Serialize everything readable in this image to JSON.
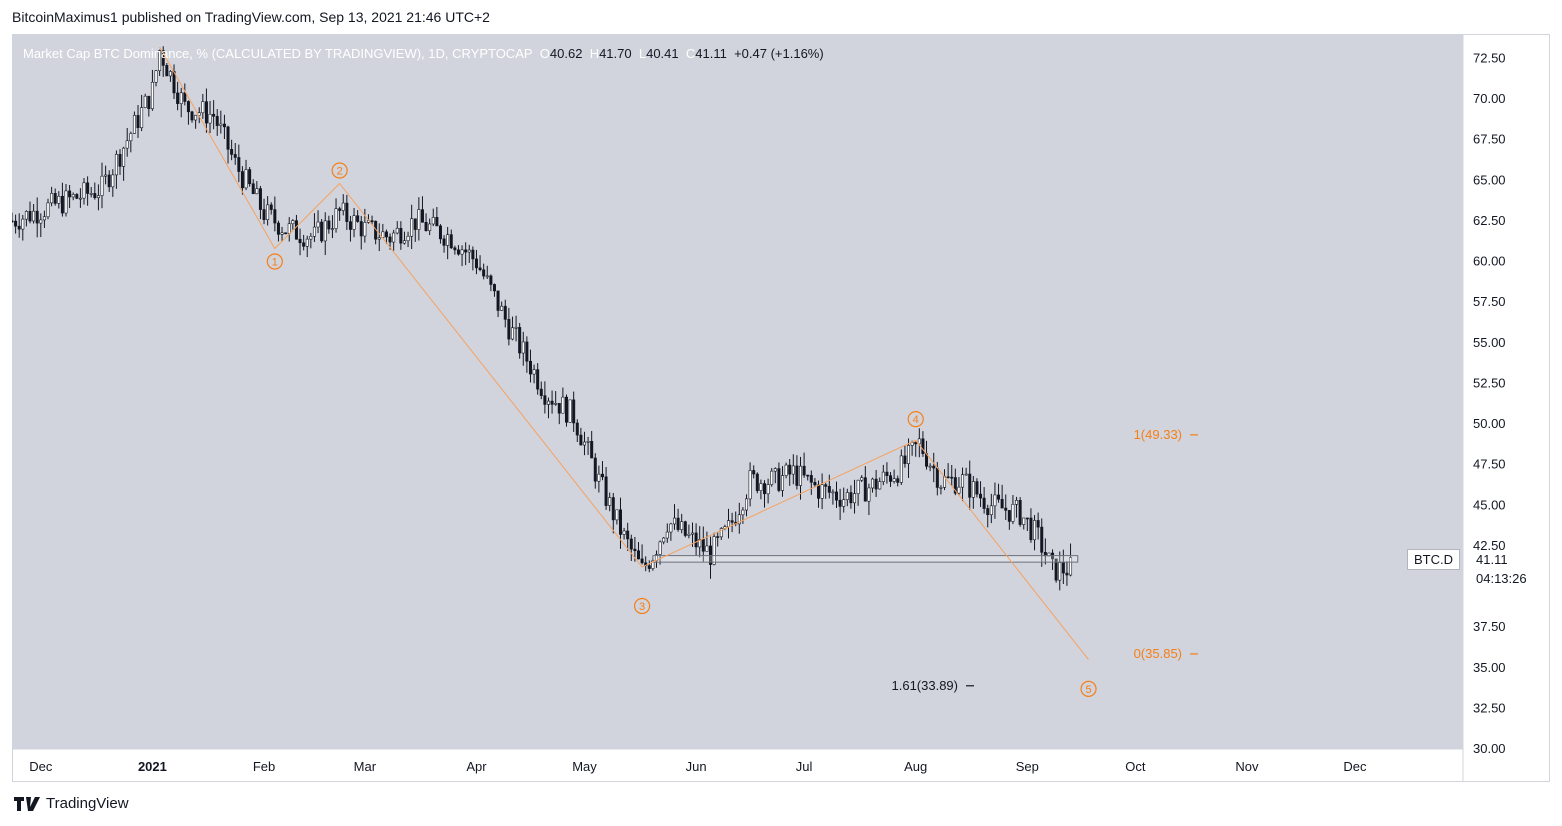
{
  "header": {
    "published_by": "BitcoinMaximus1 published on TradingView.com, Sep 13, 2021 21:46 UTC+2"
  },
  "legend": {
    "title": "Market Cap BTC Dominance, % (CALCULATED BY TRADINGVIEW), 1D, CRYPTOCAP",
    "o_label": "O",
    "o_value": "40.62",
    "h_label": "H",
    "h_value": "41.70",
    "l_label": "L",
    "l_value": "40.41",
    "c_label": "C",
    "c_value": "41.11",
    "change": "+0.47 (+1.16%)"
  },
  "price_axis": {
    "symbol_label": "BTC.D",
    "last_price": "41.11",
    "countdown": "04:13:26"
  },
  "footer": {
    "brand": "TradingView",
    "logo_icon": "tradingview-logo-icon"
  },
  "colors": {
    "plot_bg": "#d1d4dc",
    "candle": "#131722",
    "wave": "#f5a262",
    "label_orange": "#f57f17",
    "black_text": "#131722"
  },
  "chart_data": {
    "type": "candlestick",
    "title": "Market Cap BTC Dominance, % (CALCULATED BY TRADINGVIEW), 1D, CRYPTOCAP",
    "ylim": [
      30,
      74
    ],
    "y_ticks": [
      "72.50",
      "70.00",
      "67.50",
      "65.00",
      "62.50",
      "60.00",
      "57.50",
      "55.00",
      "52.50",
      "50.00",
      "47.50",
      "45.00",
      "42.50",
      "37.50",
      "35.00",
      "32.50",
      "30.00"
    ],
    "x_ticks": [
      {
        "label": "Dec",
        "date": "2020-12-01"
      },
      {
        "label": "2021",
        "date": "2021-01-01"
      },
      {
        "label": "Feb",
        "date": "2021-02-01"
      },
      {
        "label": "Mar",
        "date": "2021-03-01"
      },
      {
        "label": "Apr",
        "date": "2021-04-01"
      },
      {
        "label": "May",
        "date": "2021-05-01"
      },
      {
        "label": "Jun",
        "date": "2021-06-01"
      },
      {
        "label": "Jul",
        "date": "2021-07-01"
      },
      {
        "label": "Aug",
        "date": "2021-08-01"
      },
      {
        "label": "Sep",
        "date": "2021-09-01"
      },
      {
        "label": "Oct",
        "date": "2021-10-01"
      },
      {
        "label": "Nov",
        "date": "2021-11-01"
      },
      {
        "label": "Dec",
        "date": "2021-12-01"
      }
    ],
    "x_range": [
      "2020-11-23",
      "2021-12-31"
    ],
    "price_anchors": [
      [
        "2020-11-23",
        62.5
      ],
      [
        "2020-12-05",
        63.5
      ],
      [
        "2020-12-18",
        64.5
      ],
      [
        "2020-12-25",
        67.5
      ],
      [
        "2021-01-01",
        70.5
      ],
      [
        "2021-01-03",
        73
      ],
      [
        "2021-01-10",
        69.5
      ],
      [
        "2021-01-18",
        69
      ],
      [
        "2021-01-24",
        66
      ],
      [
        "2021-02-01",
        63
      ],
      [
        "2021-02-07",
        62
      ],
      [
        "2021-02-15",
        61.5
      ],
      [
        "2021-02-22",
        63
      ],
      [
        "2021-03-01",
        62
      ],
      [
        "2021-03-08",
        61.5
      ],
      [
        "2021-03-15",
        62.5
      ],
      [
        "2021-03-25",
        61.5
      ],
      [
        "2021-04-01",
        60
      ],
      [
        "2021-04-10",
        56
      ],
      [
        "2021-04-20",
        52
      ],
      [
        "2021-04-28",
        50.5
      ],
      [
        "2021-05-05",
        46.5
      ],
      [
        "2021-05-12",
        43
      ],
      [
        "2021-05-17",
        41
      ],
      [
        "2021-05-20",
        42
      ],
      [
        "2021-05-24",
        44
      ],
      [
        "2021-05-30",
        43
      ],
      [
        "2021-06-05",
        42
      ],
      [
        "2021-06-10",
        43.5
      ],
      [
        "2021-06-16",
        46.5
      ],
      [
        "2021-06-23",
        46.5
      ],
      [
        "2021-06-28",
        47
      ],
      [
        "2021-07-05",
        46
      ],
      [
        "2021-07-12",
        45.5
      ],
      [
        "2021-07-20",
        46.2
      ],
      [
        "2021-07-28",
        47.3
      ],
      [
        "2021-08-02",
        48.8
      ],
      [
        "2021-08-08",
        46.5
      ],
      [
        "2021-08-14",
        46.5
      ],
      [
        "2021-08-22",
        45
      ],
      [
        "2021-08-30",
        44.5
      ],
      [
        "2021-09-04",
        43
      ],
      [
        "2021-09-08",
        41
      ],
      [
        "2021-09-13",
        41.11
      ]
    ],
    "wave_lines": [
      [
        "2021-01-03",
        73.2
      ],
      [
        "2021-02-04",
        60.8
      ],
      [
        "2021-02-22",
        64.8
      ],
      [
        "2021-05-17",
        41.2
      ],
      [
        "2021-08-01",
        49.0
      ],
      [
        "2021-09-18",
        35.5
      ]
    ],
    "wave_labels": [
      {
        "label": "1",
        "date": "2021-02-04",
        "value": 60.0
      },
      {
        "label": "2",
        "date": "2021-02-22",
        "value": 65.6
      },
      {
        "label": "3",
        "date": "2021-05-17",
        "value": 38.8
      },
      {
        "label": "4",
        "date": "2021-08-01",
        "value": 50.3
      },
      {
        "label": "5",
        "date": "2021-09-18",
        "value": 33.7
      }
    ],
    "support_zone": {
      "from": "2021-05-20",
      "to": "2021-09-15",
      "y_low": 41.5,
      "y_high": 41.9
    },
    "fib_levels": [
      {
        "text": "1(49.33)",
        "value": 49.33,
        "color": "orange"
      },
      {
        "text": "0(35.85)",
        "value": 35.85,
        "color": "orange"
      },
      {
        "text": "1.61(33.89)",
        "value": 33.89,
        "color": "black"
      }
    ]
  }
}
